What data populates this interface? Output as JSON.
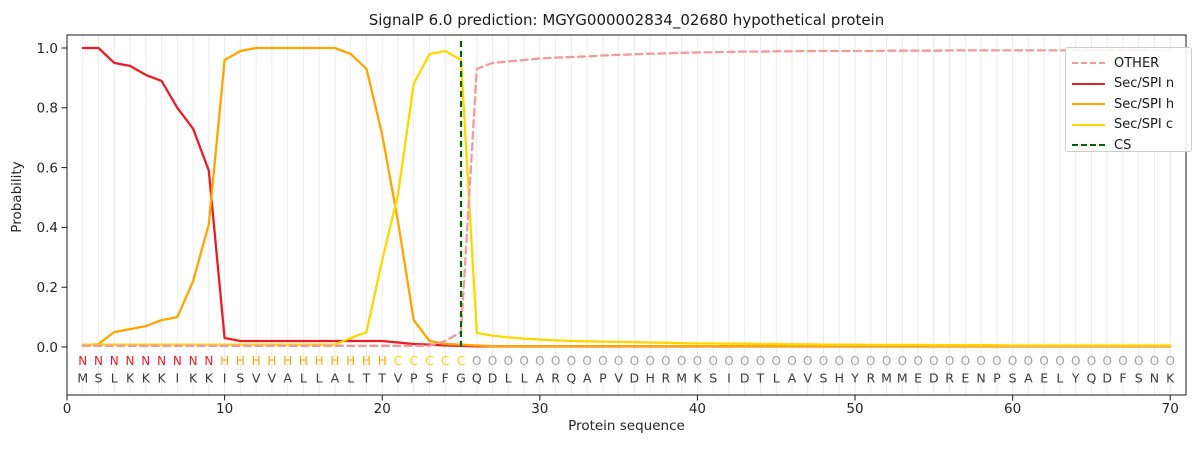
{
  "title": "SignalP 6.0 prediction: MGYG000002834_02680 hypothetical protein",
  "axes": {
    "xlabel": "Protein sequence",
    "ylabel": "Probability"
  },
  "legend": [
    {
      "label": "OTHER",
      "color": "#f49a9a",
      "dash": true
    },
    {
      "label": "Sec/SPI n",
      "color": "#ed1c24",
      "dash": false
    },
    {
      "label": "Sec/SPI h",
      "color": "#ffa500",
      "dash": false
    },
    {
      "label": "Sec/SPI c",
      "color": "#ffd700",
      "dash": false
    },
    {
      "label": "CS",
      "color": "#046404",
      "dash": true
    }
  ],
  "sequence": "MSLKKKIKKISVVALLALTTVPSFGQDLLARQAPVDHRMKSIDTLAVSHYRMMEDRENPSAELYQDFSNK",
  "regions": "NNNNNNNNNHHHHHHHHHHHCCCCCOOOOOOOOOOOOOOOOOOOOOOOOOOOOOOOOOOOOOOOOOOOOO",
  "region_colors": {
    "N": "#ed1c24",
    "H": "#ffa500",
    "C": "#ffd700",
    "O": "#a0a0a0"
  },
  "sequence_color": "#3a3a3a",
  "chart_data": {
    "type": "line",
    "title": "SignalP 6.0 prediction: MGYG000002834_02680 hypothetical protein",
    "xlabel": "Protein sequence",
    "ylabel": "Probability",
    "x_start": 1,
    "xlim": [
      0,
      71
    ],
    "ylim": [
      -0.16,
      1.044
    ],
    "xticks": [
      0,
      10,
      20,
      30,
      40,
      50,
      60,
      70
    ],
    "yticks": [
      0.0,
      0.2,
      0.4,
      0.6,
      0.8,
      1.0
    ],
    "grid": "vertical-every-residue",
    "grid_color": "#ececec",
    "legend_position": "upper right",
    "cs_position": 25,
    "draw_order": [
      1,
      2,
      3,
      0
    ],
    "series": [
      {
        "name": "OTHER",
        "color": "#f49a9a",
        "dash": [
          7,
          4.5
        ],
        "values": [
          0.004,
          0.004,
          0.004,
          0.004,
          0.004,
          0.004,
          0.004,
          0.004,
          0.004,
          0.004,
          0.004,
          0.004,
          0.004,
          0.004,
          0.004,
          0.004,
          0.004,
          0.004,
          0.004,
          0.004,
          0.004,
          0.004,
          0.004,
          0.02,
          0.05,
          0.93,
          0.95,
          0.955,
          0.96,
          0.965,
          0.968,
          0.97,
          0.972,
          0.975,
          0.977,
          0.979,
          0.981,
          0.982,
          0.984,
          0.985,
          0.986,
          0.987,
          0.988,
          0.988,
          0.989,
          0.989,
          0.99,
          0.99,
          0.99,
          0.99,
          0.99,
          0.991,
          0.991,
          0.991,
          0.991,
          0.992,
          0.992,
          0.992,
          0.992,
          0.992,
          0.992,
          0.992,
          0.992,
          0.993,
          0.993,
          0.993,
          0.993,
          0.993,
          0.993,
          0.993
        ]
      },
      {
        "name": "Sec/SPI n",
        "color": "#ed1c24",
        "dash": null,
        "values": [
          1.0,
          1.0,
          0.95,
          0.94,
          0.91,
          0.89,
          0.8,
          0.73,
          0.59,
          0.03,
          0.02,
          0.02,
          0.02,
          0.02,
          0.02,
          0.02,
          0.02,
          0.02,
          0.02,
          0.02,
          0.015,
          0.01,
          0.008,
          0.005,
          0.004,
          0.002,
          0.002,
          0.002,
          0.002,
          0.002,
          0.002,
          0.002,
          0.002,
          0.002,
          0.002,
          0.002,
          0.002,
          0.002,
          0.002,
          0.002,
          0.002,
          0.002,
          0.002,
          0.002,
          0.002,
          0.002,
          0.002,
          0.002,
          0.002,
          0.002,
          0.002,
          0.002,
          0.002,
          0.002,
          0.002,
          0.002,
          0.002,
          0.002,
          0.002,
          0.002,
          0.002,
          0.002,
          0.002,
          0.002,
          0.002,
          0.002,
          0.002,
          0.002,
          0.002,
          0.002
        ]
      },
      {
        "name": "Sec/SPI h",
        "color": "#ffa500",
        "dash": null,
        "values": [
          0.005,
          0.01,
          0.05,
          0.06,
          0.07,
          0.09,
          0.1,
          0.22,
          0.41,
          0.96,
          0.99,
          1.0,
          1.0,
          1.0,
          1.0,
          1.0,
          1.0,
          0.98,
          0.93,
          0.71,
          0.42,
          0.09,
          0.02,
          0.01,
          0.008,
          0.005,
          0.003,
          0.003,
          0.003,
          0.003,
          0.003,
          0.003,
          0.003,
          0.003,
          0.003,
          0.003,
          0.003,
          0.003,
          0.003,
          0.003,
          0.003,
          0.003,
          0.003,
          0.003,
          0.003,
          0.003,
          0.003,
          0.003,
          0.003,
          0.003,
          0.003,
          0.003,
          0.003,
          0.003,
          0.003,
          0.003,
          0.003,
          0.003,
          0.003,
          0.003,
          0.003,
          0.003,
          0.003,
          0.003,
          0.003,
          0.003,
          0.003,
          0.003,
          0.003,
          0.003
        ]
      },
      {
        "name": "Sec/SPI c",
        "color": "#ffd700",
        "dash": null,
        "values": [
          0.008,
          0.008,
          0.008,
          0.008,
          0.008,
          0.008,
          0.008,
          0.008,
          0.008,
          0.008,
          0.008,
          0.008,
          0.008,
          0.008,
          0.008,
          0.008,
          0.008,
          0.03,
          0.05,
          0.29,
          0.51,
          0.88,
          0.98,
          0.99,
          0.96,
          0.047,
          0.038,
          0.032,
          0.028,
          0.025,
          0.022,
          0.02,
          0.019,
          0.018,
          0.017,
          0.016,
          0.015,
          0.014,
          0.013,
          0.012,
          0.012,
          0.011,
          0.011,
          0.01,
          0.01,
          0.009,
          0.009,
          0.008,
          0.008,
          0.008,
          0.007,
          0.007,
          0.007,
          0.007,
          0.006,
          0.006,
          0.006,
          0.006,
          0.006,
          0.005,
          0.005,
          0.005,
          0.005,
          0.005,
          0.005,
          0.005,
          0.005,
          0.005,
          0.005,
          0.005
        ]
      },
      {
        "name": "CS",
        "color": "#046404",
        "dash": [
          6,
          4
        ],
        "type": "vline",
        "x": 25
      }
    ]
  }
}
